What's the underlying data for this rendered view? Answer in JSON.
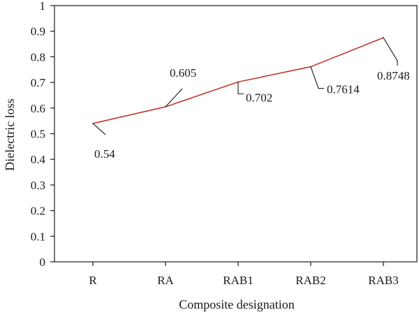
{
  "chart_data": {
    "type": "line",
    "title": "",
    "xlabel": "Composite designation",
    "ylabel": "Dielectric loss",
    "categories": [
      "R",
      "RA",
      "RAB1",
      "RAB2",
      "RAB3"
    ],
    "series": [
      {
        "values": [
          0.54,
          0.605,
          0.702,
          0.7614,
          0.8748
        ],
        "data_labels": [
          "0.54",
          "0.605",
          "0.702",
          "0.7614",
          "0.8748"
        ],
        "color": "#c0392b"
      }
    ],
    "ylim": [
      0,
      1
    ],
    "yticks": [
      "0",
      "0.1",
      "0.2",
      "0.3",
      "0.4",
      "0.5",
      "0.6",
      "0.7",
      "0.8",
      "0.9",
      "1"
    ],
    "grid": false,
    "legend": "none"
  }
}
